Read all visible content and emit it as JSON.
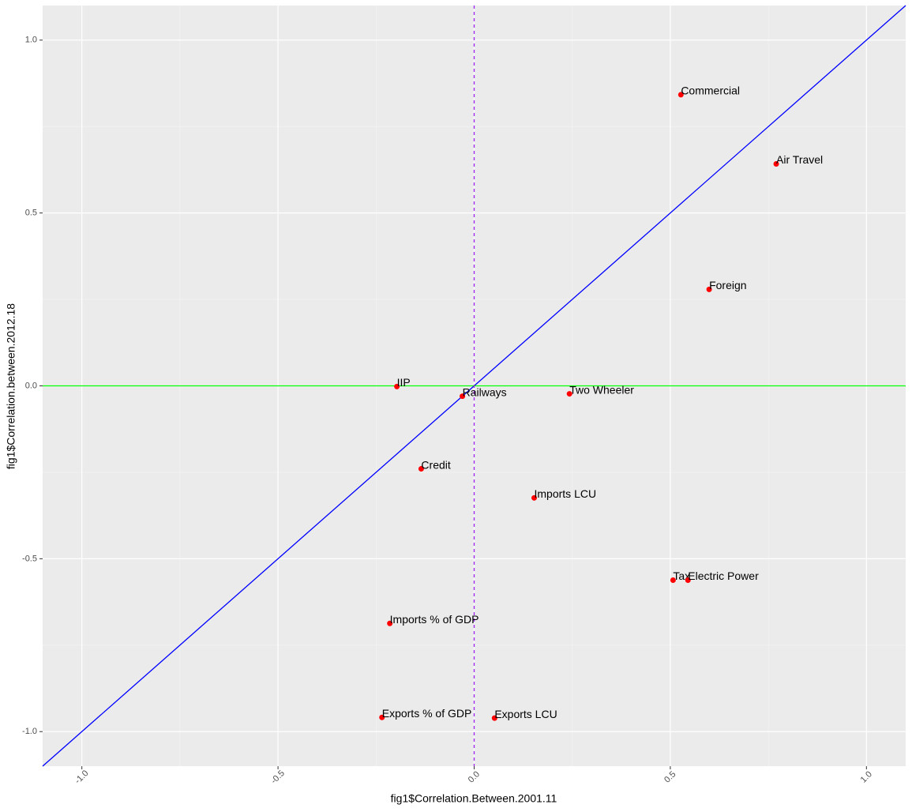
{
  "chart_data": {
    "type": "scatter",
    "x_label": "fig1$Correlation.Between.2001.11",
    "y_label": "fig1$Correlation.between.2012.18",
    "labels": [
      "Commercial",
      "Air Travel",
      "Foreign",
      "IIP",
      "Railways",
      "Two Wheeler",
      "Credit",
      "Imports LCU",
      "Tax",
      "Electric Power",
      "Imports % of GDP",
      "Exports % of GDP",
      "Exports LCU"
    ],
    "x": [
      0.527,
      0.77,
      0.599,
      -0.197,
      -0.03,
      0.243,
      -0.135,
      0.153,
      0.507,
      0.545,
      -0.215,
      -0.235,
      0.052
    ],
    "values": [
      0.842,
      0.642,
      0.279,
      -0.002,
      -0.03,
      -0.023,
      -0.24,
      -0.324,
      -0.562,
      -0.562,
      -0.687,
      -0.959,
      -0.961
    ],
    "color": "#ff0000",
    "xlim": [
      -1.1,
      1.1
    ],
    "ylim": [
      -1.1,
      1.1
    ],
    "xticks": [
      {
        "value": -1,
        "label": "-1.0"
      },
      -0.5,
      {
        "value": 0,
        "label": "0.0"
      },
      0.5,
      {
        "value": 1,
        "label": "1.0"
      }
    ],
    "yticks": [
      {
        "value": -1,
        "label": "-1.0"
      },
      -0.5,
      {
        "value": 0,
        "label": "0.0"
      },
      0.5,
      {
        "value": 1,
        "label": "1.0"
      }
    ],
    "minor_grid": [
      -0.75,
      -0.25,
      0.25,
      0.75
    ],
    "grid": true,
    "abline": {
      "slope": 1,
      "intercept": 0,
      "color": "#0000ff"
    },
    "hline": {
      "value": 0,
      "color": "#00ff00"
    },
    "vline": {
      "value": 0,
      "color": "#a020f0",
      "dashed": true
    }
  }
}
